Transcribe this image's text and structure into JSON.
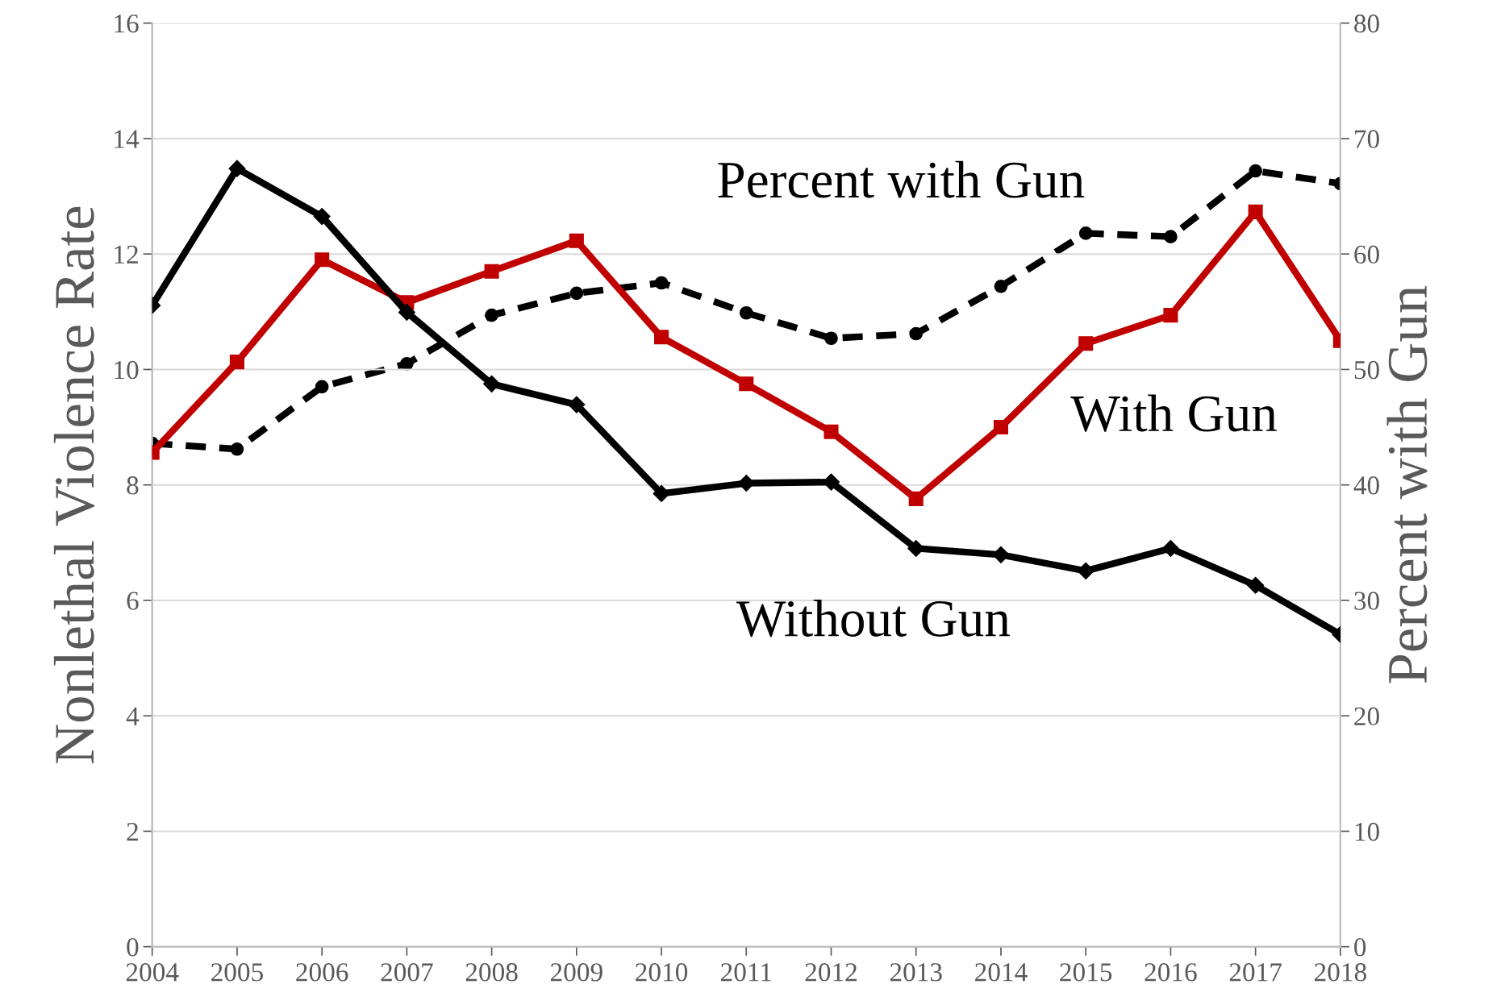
{
  "chart_data": {
    "type": "line",
    "ylabel": "Nonlethal Violence Rate",
    "y2label": "Percent with Gun",
    "categories": [
      "2004",
      "2005",
      "2006",
      "2007",
      "2008",
      "2009",
      "2010",
      "2011",
      "2012",
      "2013",
      "2014",
      "2015",
      "2016",
      "2017",
      "2018"
    ],
    "series": [
      {
        "name": "Percent with Gun",
        "color": "#000000",
        "axis": "y2",
        "marker": "circle",
        "line_style": "dashed",
        "values": [
          43.6,
          43.1,
          48.5,
          50.5,
          54.7,
          56.6,
          57.5,
          54.9,
          52.7,
          53.1,
          57.2,
          61.8,
          61.5,
          67.2,
          66.1
        ]
      },
      {
        "name": "With Gun",
        "color": "#c00000",
        "marker": "square",
        "line_style": "solid",
        "values": [
          8.56,
          10.13,
          11.9,
          11.16,
          11.7,
          12.23,
          10.56,
          9.75,
          8.92,
          7.76,
          9.0,
          10.45,
          10.94,
          12.73,
          10.5
        ]
      },
      {
        "name": "Without Gun",
        "color": "#000000",
        "marker": "diamond",
        "line_style": "solid",
        "values": [
          11.11,
          13.48,
          12.65,
          10.99,
          9.75,
          9.39,
          7.85,
          8.03,
          8.05,
          6.9,
          6.79,
          6.51,
          6.9,
          6.26,
          5.41
        ]
      }
    ],
    "ylim": [
      0,
      16
    ],
    "yticks": [
      0,
      2,
      4,
      6,
      8,
      10,
      12,
      14,
      16
    ],
    "y2lim": [
      0,
      80
    ],
    "y2ticks": [
      0,
      10,
      20,
      30,
      40,
      50,
      60,
      70,
      80
    ],
    "grid": "y",
    "legend": false
  }
}
